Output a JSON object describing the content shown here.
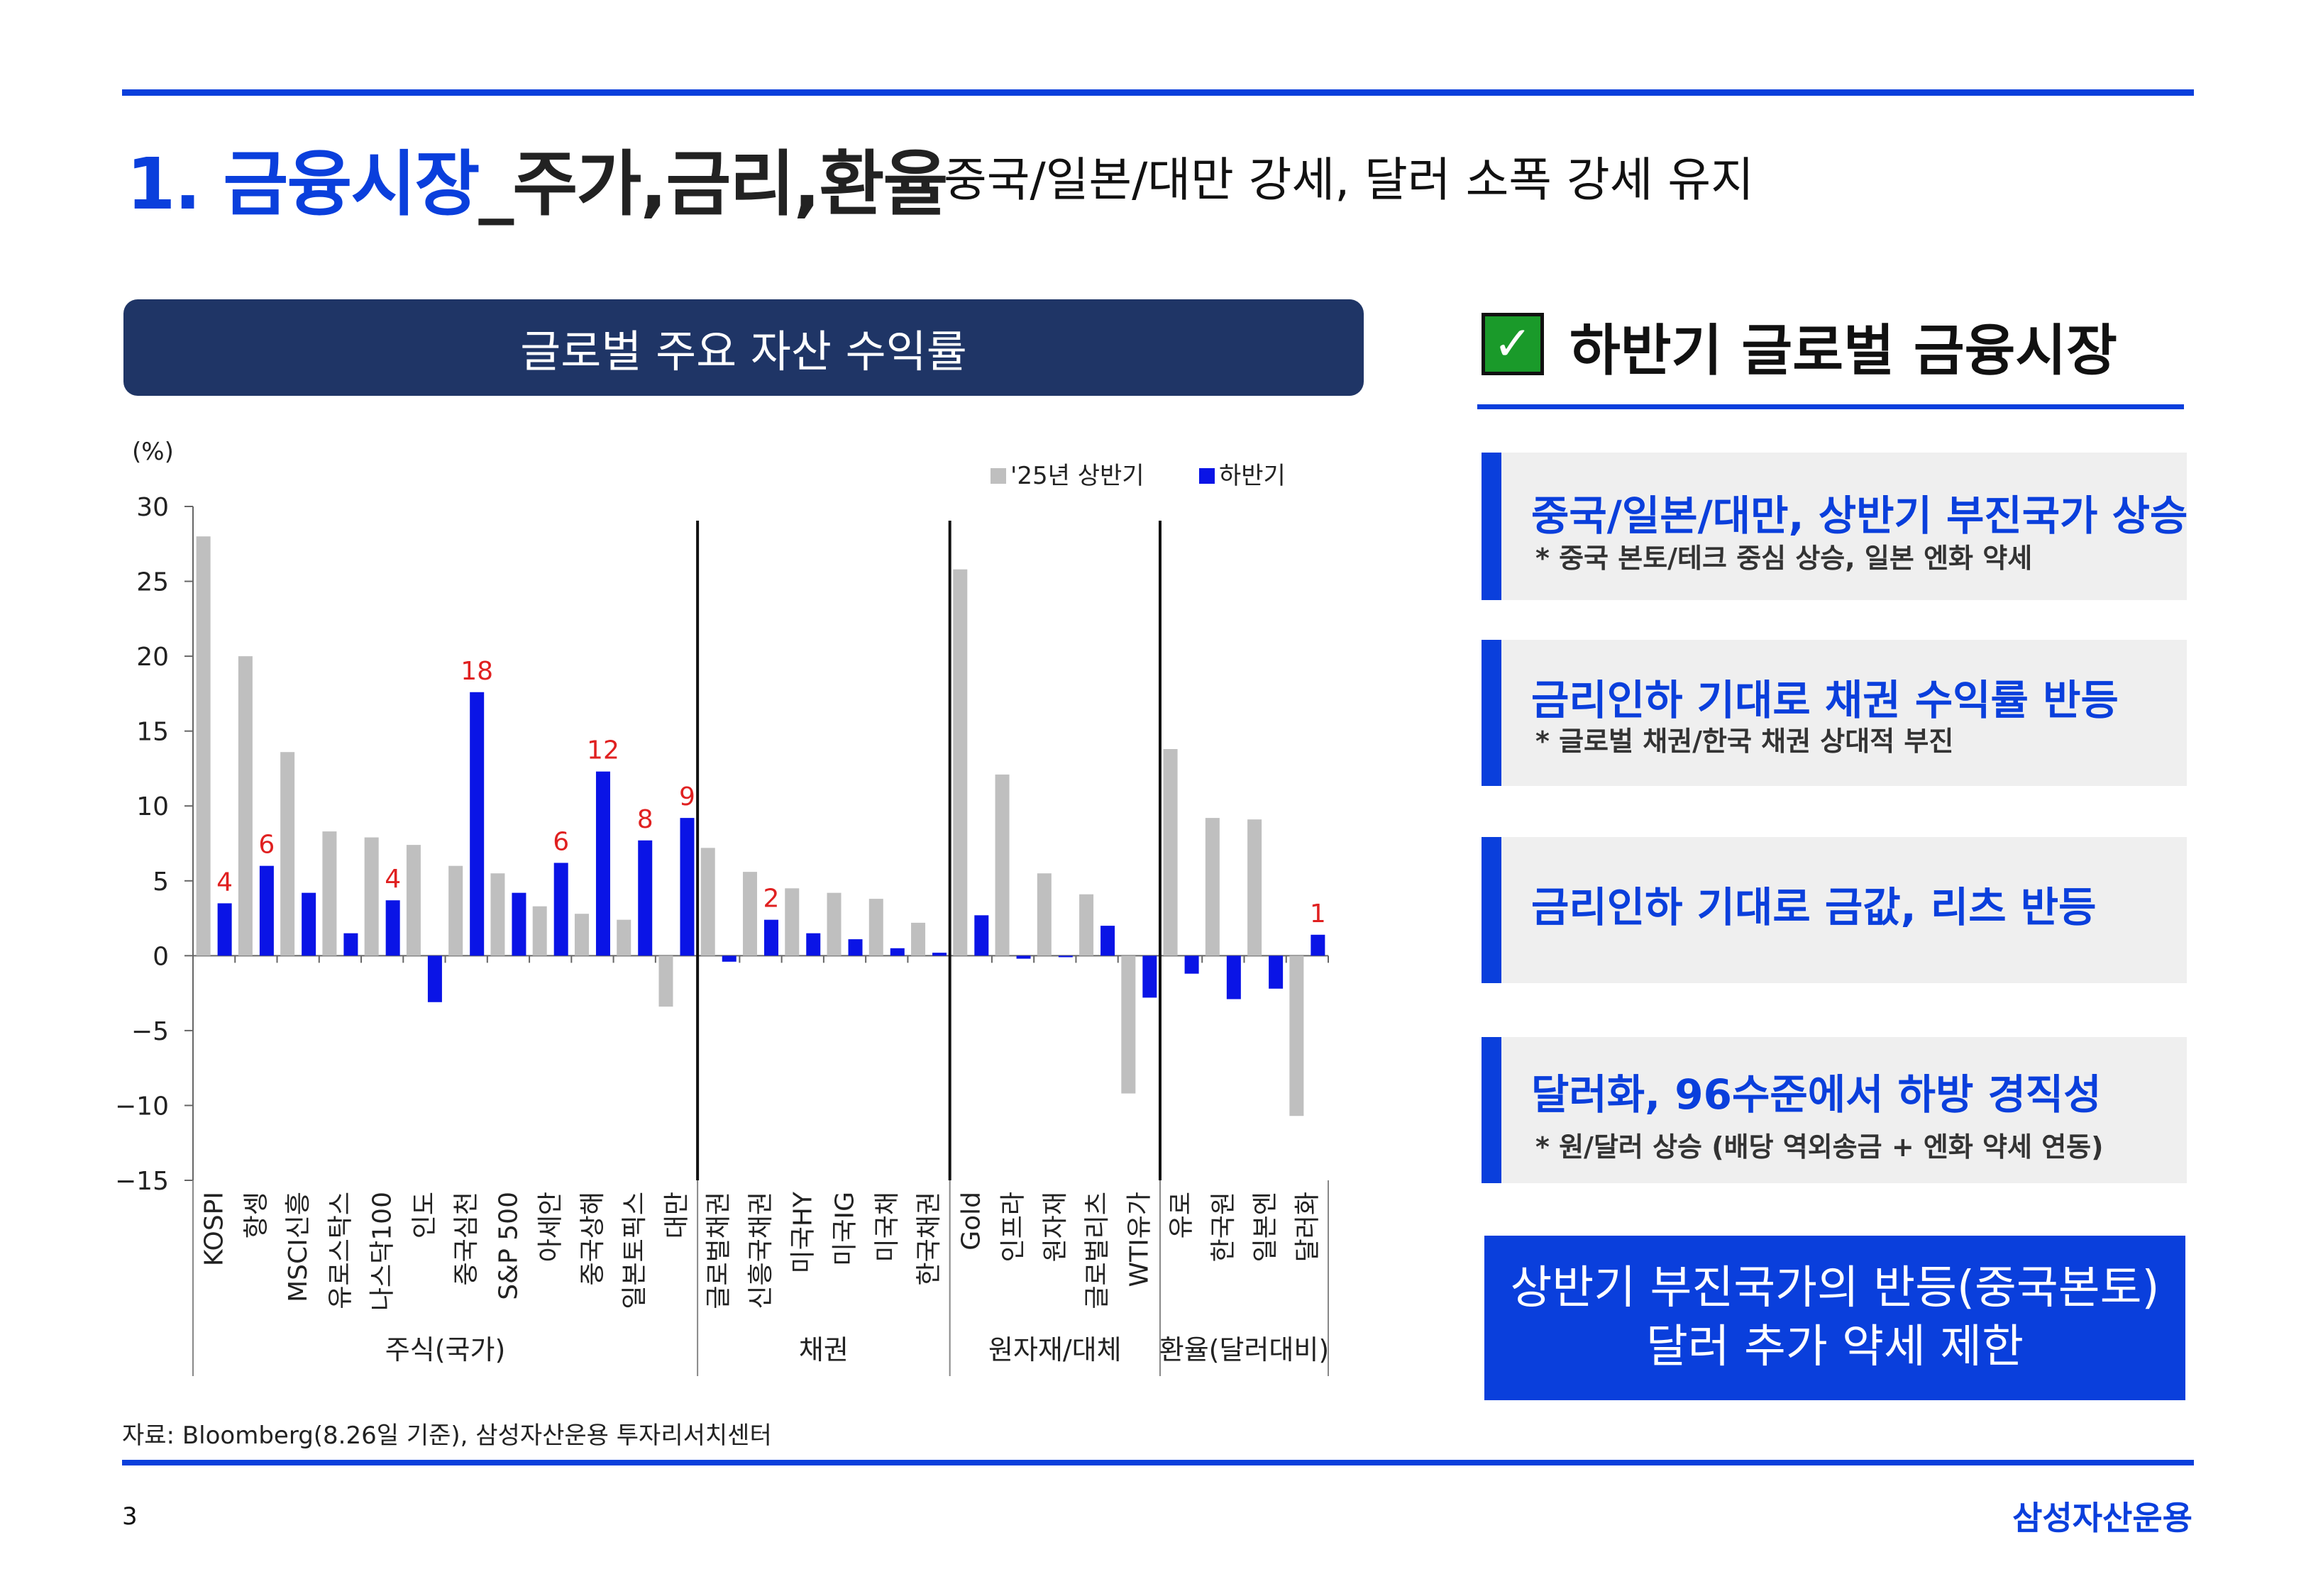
{
  "title": {
    "number": "1. 금융시장",
    "sub": "_주가,금리,환율",
    "description": "중국/일본/대만 강세, 달러 소폭 강세 유지"
  },
  "chart_header": "글로벌 주요 자산 수익률",
  "chart_data": {
    "type": "bar",
    "title": "글로벌 주요 자산 수익률",
    "ylabel": "(%)",
    "ylim": [
      -15,
      30
    ],
    "yticks": [
      30,
      25,
      20,
      15,
      10,
      5,
      0,
      -5,
      -10,
      -15
    ],
    "legend": [
      "'25년 상반기",
      "하반기"
    ],
    "legend_position": "top-right",
    "categories": [
      "KOSPI",
      "항셍",
      "MSCI신흥",
      "유로스탁스",
      "나스닥100",
      "인도",
      "중국심천",
      "S&P 500",
      "아세안",
      "중국상해",
      "일본토픽스",
      "대만",
      "글로벌채권",
      "신흥국채권",
      "미국HY",
      "미국IG",
      "미국채",
      "한국채권",
      "Gold",
      "인프라",
      "원자재",
      "글로벌리츠",
      "WTI유가",
      "유로",
      "한국원",
      "일본엔",
      "달러화"
    ],
    "series": [
      {
        "name": "'25년 상반기",
        "color": "#bfbfbf",
        "values": [
          28.0,
          20.0,
          13.6,
          8.3,
          7.9,
          7.4,
          6.0,
          5.5,
          3.3,
          2.8,
          2.4,
          -3.4,
          7.2,
          5.6,
          4.5,
          4.2,
          3.8,
          2.2,
          25.8,
          12.1,
          5.5,
          4.1,
          -9.2,
          13.8,
          9.2,
          9.1,
          -10.7
        ]
      },
      {
        "name": "하반기",
        "color": "#0a14e6",
        "values": [
          3.5,
          6.0,
          4.2,
          1.5,
          3.7,
          -3.1,
          17.6,
          4.2,
          6.2,
          12.3,
          7.7,
          9.2,
          -0.4,
          2.4,
          1.5,
          1.1,
          0.5,
          0.2,
          2.7,
          -0.2,
          -0.1,
          2.0,
          -2.8,
          -1.2,
          -2.9,
          -2.2,
          1.4
        ]
      }
    ],
    "data_labels": [
      {
        "category": "KOSPI",
        "text": "4"
      },
      {
        "category": "항셍",
        "text": "6"
      },
      {
        "category": "나스닥100",
        "text": "4"
      },
      {
        "category": "중국심천",
        "text": "18"
      },
      {
        "category": "아세안",
        "text": "6"
      },
      {
        "category": "중국상해",
        "text": "12"
      },
      {
        "category": "일본토픽스",
        "text": "8"
      },
      {
        "category": "대만",
        "text": "9"
      },
      {
        "category": "신흥국채권",
        "text": "2"
      },
      {
        "category": "달러화",
        "text": "1"
      }
    ],
    "groups": [
      {
        "label": "주식(국가)",
        "count": 12
      },
      {
        "label": "채권",
        "count": 6
      },
      {
        "label": "원자재/대체",
        "count": 5
      },
      {
        "label": "환율(달러대비)",
        "count": 4
      }
    ]
  },
  "source": "자료: Bloomberg(8.26일 기준), 삼성자산운용 투자리서치센터",
  "page_number": "3",
  "brand": "삼성자산운용",
  "panel": {
    "check_icon": "check-icon",
    "title": "하반기 글로벌 금융시장",
    "cards": [
      {
        "heading": "중국/일본/대만, 상반기 부진국가 상승",
        "sub": "* 중국 본토/테크 중심 상승, 일본 엔화 약세"
      },
      {
        "heading": "금리인하 기대로 채권 수익률 반등",
        "sub": "* 글로벌 채권/한국 채권 상대적 부진"
      },
      {
        "heading": "금리인하 기대로 금값, 리츠 반등"
      },
      {
        "heading": "달러화, 96수준에서 하방 경직성",
        "sub": "* 원/달러 상승 (배당 역외송금 + 엔화 약세 연동)"
      }
    ],
    "conclusion": {
      "line1": "상반기 부진국가의 반등(중국본토)",
      "line2": "달러 추가 약세 제한"
    }
  }
}
